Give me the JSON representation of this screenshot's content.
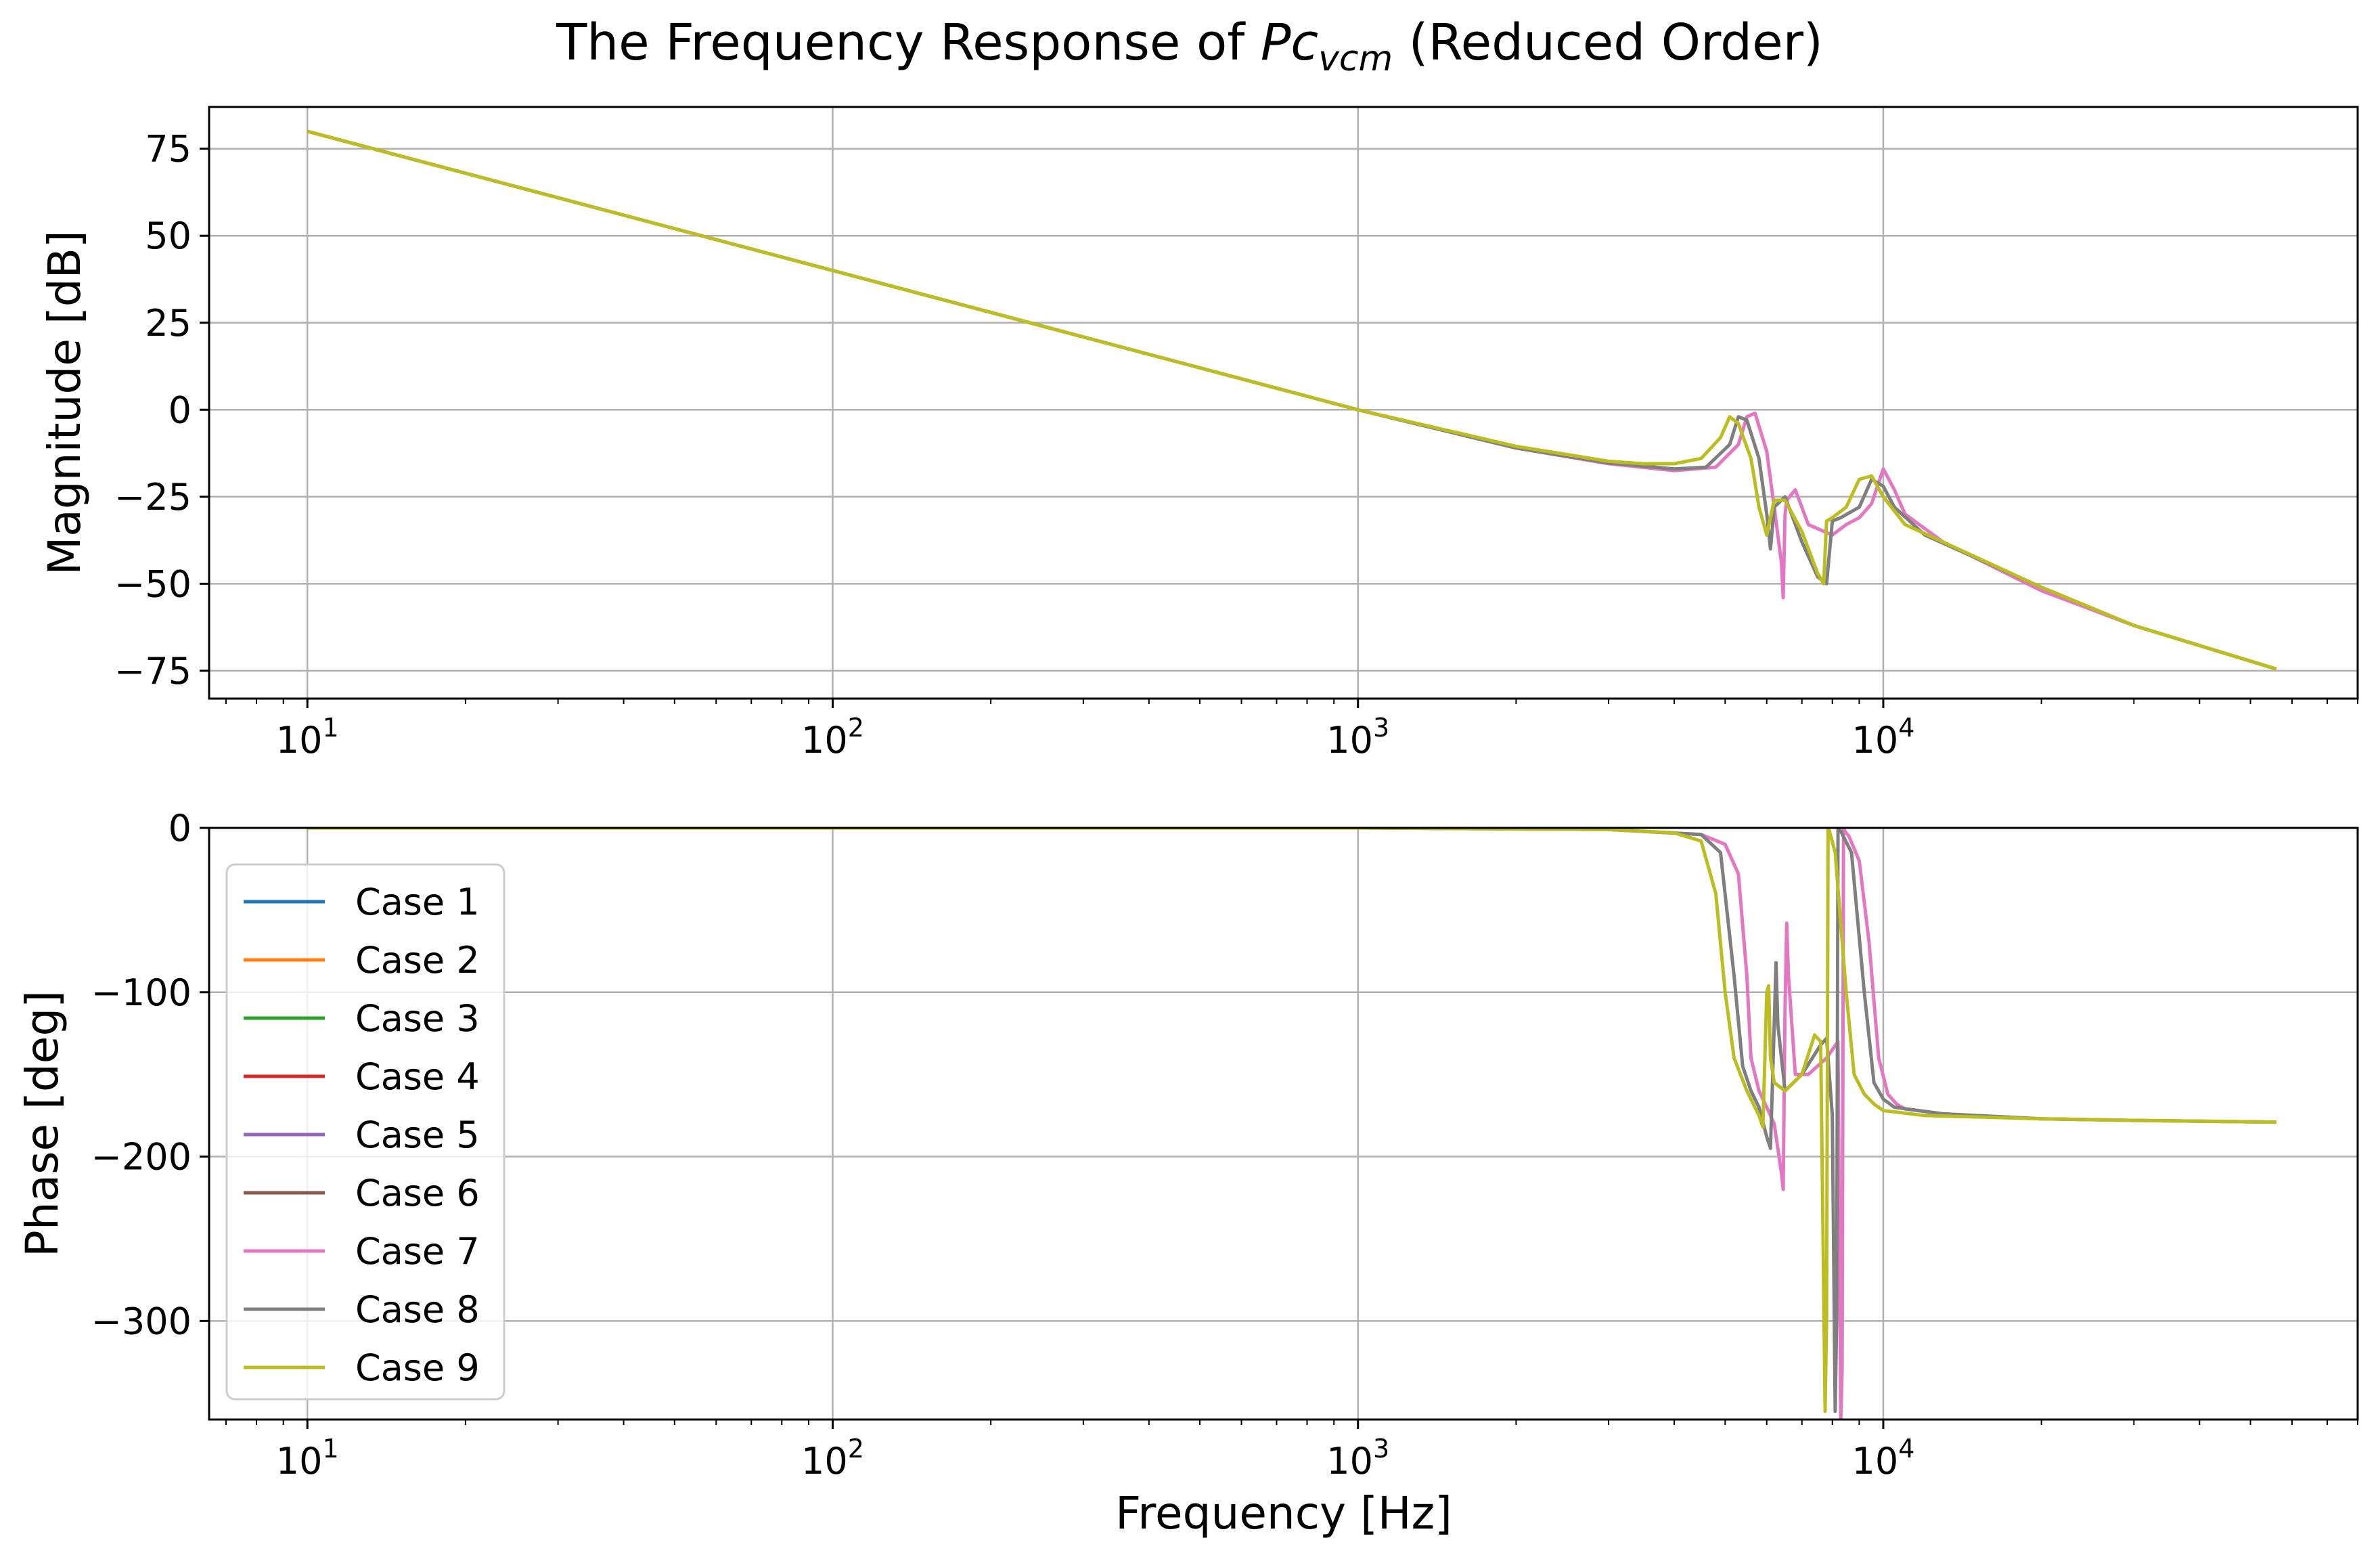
{
  "chart_data": {
    "type": "line",
    "title": {
      "prefix": "The Frequency Response of ",
      "symbol": "Pc",
      "subscript": "vcm",
      "suffix": " (Reduced Order)"
    },
    "xlabel": "Frequency [Hz]",
    "x_scale": "log",
    "xlim": [
      6.5,
      80000
    ],
    "x_ticks": [
      {
        "value": 10,
        "base": "10",
        "exp": "1"
      },
      {
        "value": 100,
        "base": "10",
        "exp": "2"
      },
      {
        "value": 1000,
        "base": "10",
        "exp": "3"
      },
      {
        "value": 10000,
        "base": "10",
        "exp": "4"
      }
    ],
    "grid": true,
    "legend_location": "lower-left of phase panel",
    "colors": {
      "Case 1": "#1f77b4",
      "Case 2": "#ff7f0e",
      "Case 3": "#2ca02c",
      "Case 4": "#d62728",
      "Case 5": "#9467bd",
      "Case 6": "#8c564b",
      "Case 7": "#e377c2",
      "Case 8": "#7f7f7f",
      "Case 9": "#bcbd22"
    },
    "legend": [
      "Case 1",
      "Case 2",
      "Case 3",
      "Case 4",
      "Case 5",
      "Case 6",
      "Case 7",
      "Case 8",
      "Case 9"
    ],
    "panels": [
      {
        "id": "magnitude",
        "ylabel": "Magnitude [dB]",
        "ylim": [
          -83,
          87
        ],
        "y_ticks": [
          {
            "value": 75,
            "label": "75"
          },
          {
            "value": 50,
            "label": "50"
          },
          {
            "value": 25,
            "label": "25"
          },
          {
            "value": 0,
            "label": "0"
          },
          {
            "value": -25,
            "label": "−25"
          },
          {
            "value": -50,
            "label": "−50"
          },
          {
            "value": -75,
            "label": "−75"
          }
        ],
        "series": [
          {
            "name": "Case 7",
            "x": [
              10,
              100,
              1000,
              2000,
              3000,
              4000,
              4800,
              5300,
              5500,
              5700,
              6000,
              6200,
              6400,
              6450,
              6500,
              6550,
              6800,
              7200,
              8000,
              8500,
              9000,
              9500,
              10000,
              10500,
              11000,
              13000,
              20000,
              30000,
              56000
            ],
            "y": [
              80,
              40,
              0,
              -11,
              -15.5,
              -17.5,
              -16.5,
              -10,
              -2,
              -1,
              -12,
              -28,
              -44,
              -54,
              -30,
              -26,
              -23,
              -33,
              -36,
              -33,
              -31,
              -27,
              -17,
              -23,
              -30,
              -38,
              -52,
              -62,
              -74.5
            ]
          },
          {
            "name": "Case 8",
            "x": [
              10,
              100,
              1000,
              2000,
              3000,
              4000,
              4600,
              5100,
              5300,
              5500,
              5800,
              6000,
              6100,
              6200,
              6500,
              7000,
              7500,
              7800,
              8000,
              8300,
              9000,
              9500,
              10000,
              10500,
              12000,
              20000,
              30000,
              56000
            ],
            "y": [
              80,
              40,
              0,
              -11,
              -15.3,
              -17,
              -16.5,
              -10,
              -2,
              -3,
              -14,
              -30,
              -40,
              -28,
              -25,
              -38,
              -48,
              -50,
              -32,
              -31,
              -28,
              -20,
              -22,
              -28,
              -36,
              -51,
              -62,
              -74.5
            ]
          },
          {
            "name": "Case 9",
            "x": [
              10,
              100,
              1000,
              2000,
              3000,
              3500,
              4000,
              4500,
              4900,
              5100,
              5300,
              5600,
              5800,
              6000,
              6200,
              6500,
              7000,
              7500,
              7700,
              7800,
              8000,
              8500,
              9000,
              9500,
              10000,
              11000,
              20000,
              30000,
              56000
            ],
            "y": [
              80,
              40,
              0,
              -10.5,
              -14.8,
              -15.5,
              -15.5,
              -14,
              -8,
              -2,
              -4,
              -14,
              -28,
              -36,
              -26,
              -26,
              -35,
              -47,
              -50,
              -32,
              -31,
              -28,
              -20,
              -19,
              -25,
              -33,
              -51,
              -62,
              -74.5
            ]
          }
        ]
      },
      {
        "id": "phase",
        "ylabel": "Phase [deg]",
        "ylim": [
          -360,
          0
        ],
        "y_ticks": [
          {
            "value": 0,
            "label": "0"
          },
          {
            "value": -100,
            "label": "−100"
          },
          {
            "value": -200,
            "label": "−200"
          },
          {
            "value": -300,
            "label": "−300"
          }
        ],
        "series": [
          {
            "name": "Case 7",
            "x": [
              10,
              1000,
              3000,
              4500,
              5000,
              5300,
              5500,
              5600,
              5800,
              6000,
              6200,
              6400,
              6450,
              6500,
              6550,
              6600,
              6800,
              7200,
              7800,
              8200,
              8300,
              8350,
              8400,
              8450,
              8600,
              9000,
              9400,
              9800,
              10200,
              10600,
              11000,
              13000,
              20000,
              30000,
              56000
            ],
            "y": [
              0,
              0,
              -1,
              -4,
              -10,
              -28,
              -90,
              -140,
              -160,
              -170,
              -180,
              -210,
              -220,
              -110,
              -58,
              -90,
              -150,
              -150,
              -140,
              -130,
              -360,
              -330,
              0,
              -2,
              -5,
              -20,
              -70,
              -140,
              -162,
              -168,
              -171,
              -174,
              -177,
              -178,
              -179
            ]
          },
          {
            "name": "Case 8",
            "x": [
              10,
              1000,
              3000,
              4500,
              4900,
              5200,
              5400,
              5600,
              5800,
              6000,
              6100,
              6200,
              6250,
              6300,
              6500,
              7000,
              7600,
              7800,
              8000,
              8100,
              8150,
              8200,
              8300,
              8700,
              9200,
              9600,
              10000,
              10500,
              13000,
              20000,
              30000,
              56000
            ],
            "y": [
              0,
              0,
              -1,
              -4,
              -15,
              -90,
              -145,
              -160,
              -170,
              -188,
              -195,
              -120,
              -82,
              -120,
              -160,
              -150,
              -132,
              -128,
              -175,
              -355,
              -300,
              0,
              -2,
              -15,
              -100,
              -155,
              -165,
              -170,
              -174,
              -177,
              -178,
              -179
            ]
          },
          {
            "name": "Case 9",
            "x": [
              10,
              1000,
              3000,
              4000,
              4500,
              4800,
              5000,
              5200,
              5500,
              5800,
              5900,
              6000,
              6050,
              6100,
              6200,
              6500,
              7000,
              7400,
              7600,
              7750,
              7800,
              7850,
              7900,
              8100,
              8500,
              8800,
              9200,
              9600,
              10000,
              12000,
              20000,
              30000,
              56000
            ],
            "y": [
              0,
              0,
              -1,
              -3,
              -8,
              -40,
              -100,
              -140,
              -160,
              -175,
              -182,
              -100,
              -96,
              -140,
              -155,
              -160,
              -150,
              -126,
              -130,
              -355,
              -300,
              0,
              -2,
              -15,
              -100,
              -150,
              -162,
              -168,
              -172,
              -175,
              -177,
              -178,
              -179
            ]
          }
        ]
      }
    ]
  }
}
